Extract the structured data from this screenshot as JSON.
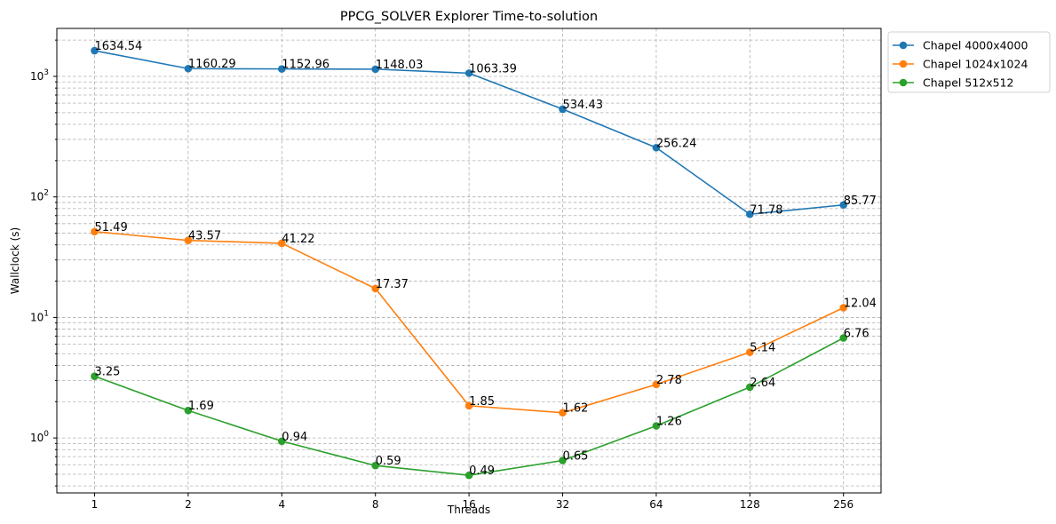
{
  "chart_data": {
    "type": "line",
    "title": "PPCG_SOLVER Explorer Time-to-solution",
    "xlabel": "Threads",
    "ylabel": "Wallclock (s)",
    "yscale": "log",
    "ylim": [
      0.35,
      2500
    ],
    "grid": true,
    "legend_position": "outside top-right",
    "x": [
      1,
      2,
      4,
      8,
      16,
      32,
      64,
      128,
      256
    ],
    "x_tick_labels": [
      "1",
      "2",
      "4",
      "8",
      "16",
      "32",
      "64",
      "128",
      "256"
    ],
    "y_tick_labels": [
      {
        "value": 1,
        "base": "10",
        "exp": "0"
      },
      {
        "value": 10,
        "base": "10",
        "exp": "1"
      },
      {
        "value": 100,
        "base": "10",
        "exp": "2"
      },
      {
        "value": 1000,
        "base": "10",
        "exp": "3"
      }
    ],
    "series": [
      {
        "name": "Chapel 4000x4000",
        "color": "#1f77b4",
        "values": [
          1634.54,
          1160.29,
          1152.96,
          1148.03,
          1063.39,
          534.43,
          256.24,
          71.78,
          85.77
        ],
        "labels": [
          "1634.54",
          "1160.29",
          "1152.96",
          "1148.03",
          "1063.39",
          "534.43",
          "256.24",
          "71.78",
          "85.77"
        ]
      },
      {
        "name": "Chapel 1024x1024",
        "color": "#ff7f0e",
        "values": [
          51.49,
          43.57,
          41.22,
          17.37,
          1.85,
          1.62,
          2.78,
          5.14,
          12.04
        ],
        "labels": [
          "51.49",
          "43.57",
          "41.22",
          "17.37",
          "1.85",
          "1.62",
          "2.78",
          "5.14",
          "12.04"
        ]
      },
      {
        "name": "Chapel 512x512",
        "color": "#2ca02c",
        "values": [
          3.25,
          1.69,
          0.94,
          0.59,
          0.49,
          0.65,
          1.26,
          2.64,
          6.76
        ],
        "labels": [
          "3.25",
          "1.69",
          "0.94",
          "0.59",
          "0.49",
          "0.65",
          "1.26",
          "2.64",
          "6.76"
        ]
      }
    ]
  }
}
